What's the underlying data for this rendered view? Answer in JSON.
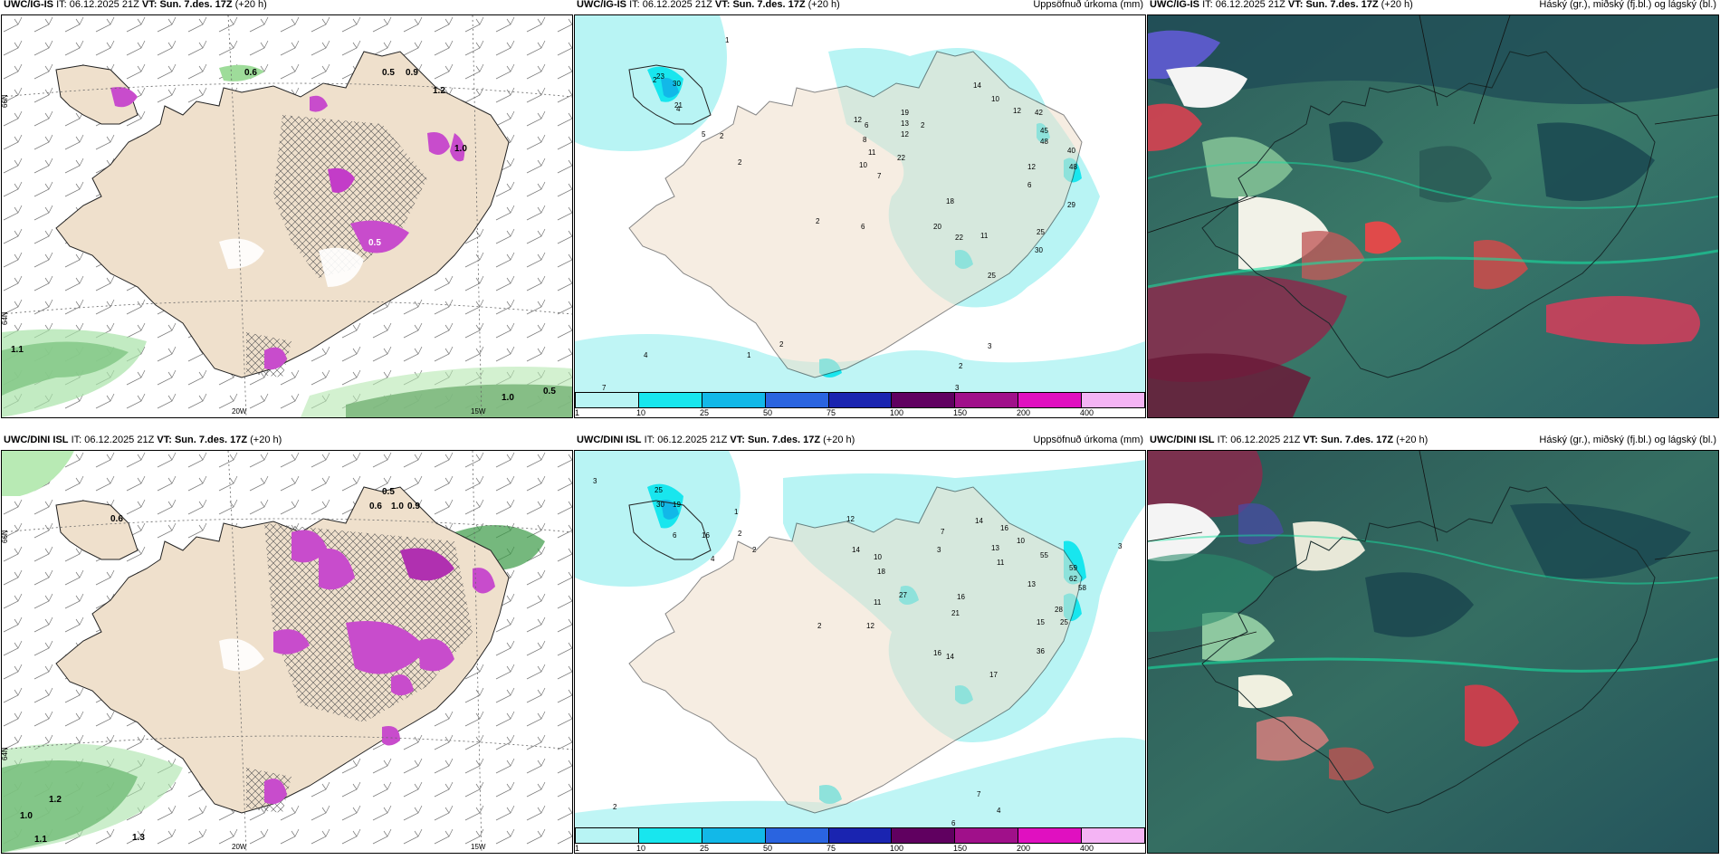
{
  "rows": [
    {
      "model": "UWC/IG-IS",
      "it_label": "IT:",
      "it_value": "06.12.2025 21Z",
      "vt_label": "VT:",
      "vt_value": "Sun. 7.des. 17Z",
      "lead": "(+20 h)"
    },
    {
      "model": "UWC/DINI ISL",
      "it_label": "IT:",
      "it_value": "06.12.2025 21Z",
      "vt_label": "VT:",
      "vt_value": "Sun. 7.des. 17Z",
      "lead": "(+20 h)"
    }
  ],
  "precip_title": "Uppsöfnuð úrkoma (mm)",
  "cloud_title": "Háský (gr.), miðský (fj.bl.) og lágský (bl.)",
  "colorbar": {
    "ticks": [
      "1",
      "10",
      "25",
      "50",
      "75",
      "100",
      "150",
      "200",
      "400"
    ],
    "colors": [
      "#b8f4f4",
      "#18e6ee",
      "#12b8e8",
      "#2a64e0",
      "#1a24b0",
      "#600060",
      "#a0108a",
      "#e010c0",
      "#f4b4f4"
    ]
  },
  "axis_labels": {
    "lat66": "66N",
    "lat64": "64N",
    "lon20": "20W",
    "lon15": "15W"
  },
  "wind_labels_top": [
    "0.6",
    "0.5",
    "0.9",
    "1.2",
    "1.0",
    "1.1",
    "1.0",
    "0.5",
    "0.5"
  ],
  "wind_labels_bottom": [
    "0.5",
    "0.6",
    "1.0",
    "0.9",
    "1.2",
    "1.0",
    "1.1",
    "1.3",
    "0.6"
  ],
  "precip_labels_top": [
    "1",
    "23",
    "30",
    "21",
    "2",
    "4",
    "5",
    "2",
    "2",
    "12",
    "6",
    "8",
    "11",
    "10",
    "7",
    "22",
    "19",
    "13",
    "12",
    "2",
    "14",
    "10",
    "12",
    "42",
    "45",
    "48",
    "40",
    "48",
    "12",
    "29",
    "6",
    "18",
    "20",
    "22",
    "11",
    "30",
    "25",
    "25",
    "2",
    "6",
    "4",
    "1",
    "2",
    "3",
    "7",
    "3",
    "2"
  ],
  "precip_labels_bottom": [
    "3",
    "25",
    "30",
    "19",
    "16",
    "6",
    "1",
    "2",
    "4",
    "12",
    "14",
    "10",
    "18",
    "11",
    "27",
    "7",
    "3",
    "14",
    "16",
    "13",
    "11",
    "10",
    "55",
    "59",
    "62",
    "58",
    "13",
    "16",
    "21",
    "28",
    "25",
    "15",
    "16",
    "14",
    "17",
    "36",
    "12",
    "2",
    "2",
    "3",
    "7",
    "6",
    "4",
    "2"
  ]
}
